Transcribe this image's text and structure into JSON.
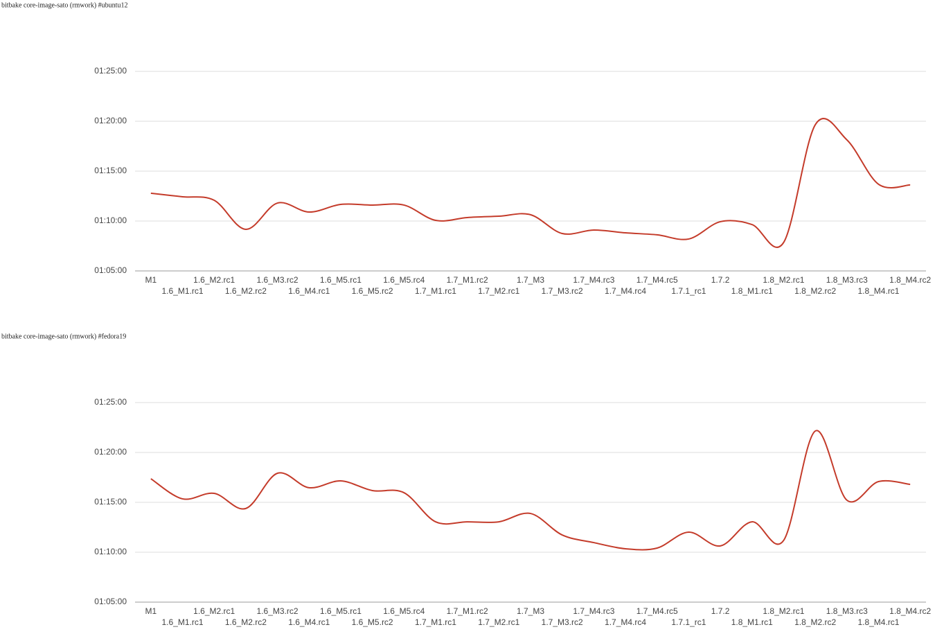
{
  "chart_data": [
    {
      "type": "line",
      "title": "bitbake core-image-sato (rmwork) #ubuntu12",
      "categories": [
        "M1",
        "1.6_M1.rc1",
        "1.6_M2.rc1",
        "1.6_M2.rc2",
        "1.6_M3.rc2",
        "1.6_M4.rc1",
        "1.6_M5.rc1",
        "1.6_M5.rc2",
        "1.6_M5.rc4",
        "1.7_M1.rc1",
        "1.7_M1.rc2",
        "1.7_M2.rc1",
        "1.7_M3",
        "1.7_M3.rc2",
        "1.7_M4.rc3",
        "1.7_M4.rc4",
        "1.7_M4.rc5",
        "1.7.1_rc1",
        "1.7.2",
        "1.8_M1.rc1",
        "1.8_M2.rc1",
        "1.8_M2.rc2",
        "1.8_M3.rc3",
        "1.8_M4.rc1",
        "1.8_M4.rc2"
      ],
      "values": [
        4367,
        4346,
        4325,
        4150,
        4308,
        4254,
        4300,
        4296,
        4296,
        4204,
        4221,
        4229,
        4238,
        4125,
        4146,
        4129,
        4117,
        4092,
        4196,
        4179,
        4071,
        4779,
        4688,
        4421,
        4417
      ],
      "color": "#c43b2a",
      "ylim": [
        3900,
        5100
      ],
      "yticks": [
        {
          "value": 3900,
          "label": "01:05:00"
        },
        {
          "value": 4200,
          "label": "01:10:00"
        },
        {
          "value": 4500,
          "label": "01:15:00"
        },
        {
          "value": 4800,
          "label": "01:20:00"
        },
        {
          "value": 5100,
          "label": "01:25:00"
        }
      ],
      "grid": true
    },
    {
      "type": "line",
      "title": "bitbake core-image-sato (rmwork) #fedora19",
      "categories": [
        "M1",
        "1.6_M1.rc1",
        "1.6_M2.rc1",
        "1.6_M2.rc2",
        "1.6_M3.rc2",
        "1.6_M4.rc1",
        "1.6_M5.rc1",
        "1.6_M5.rc2",
        "1.6_M5.rc4",
        "1.7_M1.rc1",
        "1.7_M1.rc2",
        "1.7_M2.rc1",
        "1.7_M3",
        "1.7_M3.rc2",
        "1.7_M4.rc3",
        "1.7_M4.rc4",
        "1.7_M4.rc5",
        "1.7.1_rc1",
        "1.7.2",
        "1.8_M1.rc1",
        "1.8_M2.rc1",
        "1.8_M2.rc2",
        "1.8_M3.rc3",
        "1.8_M4.rc1",
        "1.8_M4.rc2"
      ],
      "values": [
        4642,
        4521,
        4554,
        4463,
        4675,
        4588,
        4629,
        4571,
        4558,
        4383,
        4383,
        4383,
        4433,
        4304,
        4258,
        4221,
        4225,
        4321,
        4238,
        4383,
        4271,
        4929,
        4513,
        4625,
        4608
      ],
      "color": "#c43b2a",
      "ylim": [
        3900,
        5100
      ],
      "yticks": [
        {
          "value": 3900,
          "label": "01:05:00"
        },
        {
          "value": 4200,
          "label": "01:10:00"
        },
        {
          "value": 4500,
          "label": "01:15:00"
        },
        {
          "value": 4800,
          "label": "01:20:00"
        },
        {
          "value": 5100,
          "label": "01:25:00"
        }
      ],
      "grid": true
    }
  ]
}
